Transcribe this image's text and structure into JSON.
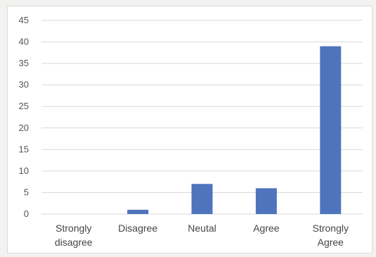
{
  "chart_data": {
    "type": "bar",
    "title": "",
    "xlabel": "",
    "ylabel": "",
    "categories": [
      "Strongly disagree",
      "Disagree",
      "Neutal",
      "Agree",
      "Strongly Agree"
    ],
    "category_lines": [
      [
        "Strongly",
        "disagree"
      ],
      [
        "Disagree"
      ],
      [
        "Neutal"
      ],
      [
        "Agree"
      ],
      [
        "Strongly",
        "Agree"
      ]
    ],
    "values": [
      0,
      1,
      7,
      6,
      39
    ],
    "ylim": [
      0,
      45
    ],
    "yticks": [
      0,
      5,
      10,
      15,
      20,
      25,
      30,
      35,
      40,
      45
    ],
    "ytick_labels": [
      "0",
      "5",
      "10",
      "15",
      "20",
      "25",
      "30",
      "35",
      "40",
      "45"
    ],
    "grid": true,
    "legend": "none",
    "bar_color": "#4f74be",
    "grid_color": "#d9d9d9"
  }
}
